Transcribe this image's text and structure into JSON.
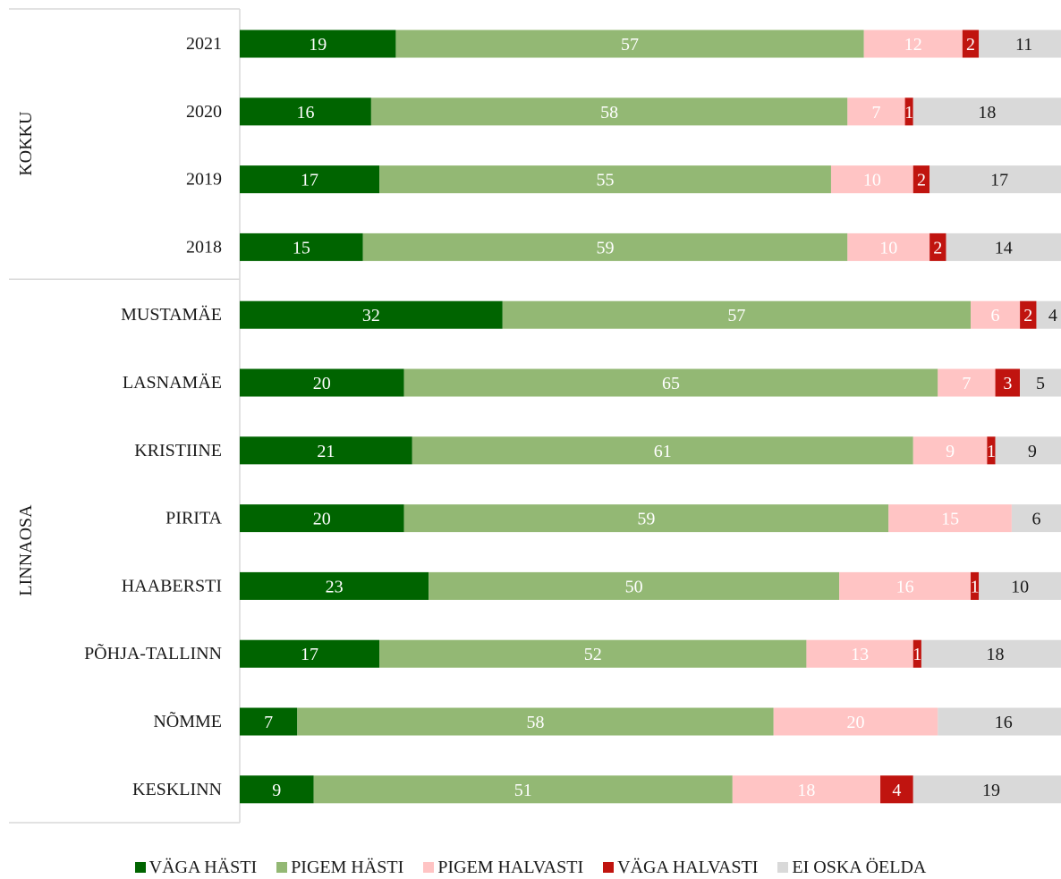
{
  "chart_data": {
    "type": "bar",
    "orientation": "horizontal",
    "stacked": true,
    "title": "",
    "xlabel": "",
    "ylabel": "",
    "xlim": [
      0,
      100
    ],
    "groups": [
      {
        "label": "KOKKU",
        "categories": [
          "2021",
          "2020",
          "2019",
          "2018"
        ]
      },
      {
        "label": "LINNAOSA",
        "categories": [
          "MUSTAMÄE",
          "LASNAMÄE",
          "KRISTIINE",
          "PIRITA",
          "HAABERSTI",
          "PÕHJA-TALLINN",
          "NÕMME",
          "KESKLINN"
        ]
      }
    ],
    "categories": [
      "2021",
      "2020",
      "2019",
      "2018",
      "MUSTAMÄE",
      "LASNAMÄE",
      "KRISTIINE",
      "PIRITA",
      "HAABERSTI",
      "PÕHJA-TALLINN",
      "NÕMME",
      "KESKLINN"
    ],
    "series": [
      {
        "name": "VÄGA HÄSTI",
        "color": "#006400",
        "label_color": "#ffffff",
        "values": [
          19,
          16,
          17,
          15,
          32,
          20,
          21,
          20,
          23,
          17,
          7,
          9
        ]
      },
      {
        "name": "PIGEM HÄSTI",
        "color": "#93b874",
        "label_color": "#ffffff",
        "values": [
          57,
          58,
          55,
          59,
          57,
          65,
          61,
          59,
          50,
          52,
          58,
          51
        ]
      },
      {
        "name": "PIGEM HALVASTI",
        "color": "#ffc4c4",
        "label_color": "#ffffff",
        "values": [
          12,
          7,
          10,
          10,
          6,
          7,
          9,
          15,
          16,
          13,
          20,
          18
        ]
      },
      {
        "name": "VÄGA HALVASTI",
        "color": "#c0140f",
        "label_color": "#ffffff",
        "values": [
          2,
          1,
          2,
          2,
          2,
          3,
          1,
          0,
          1,
          1,
          0,
          4
        ]
      },
      {
        "name": "EI OSKA ÖELDA",
        "color": "#d9d9d9",
        "label_color": "#1a1a1a",
        "values": [
          11,
          18,
          17,
          14,
          4,
          5,
          9,
          6,
          10,
          18,
          16,
          19
        ]
      }
    ],
    "legend": {
      "position": "bottom"
    },
    "grid": false
  }
}
